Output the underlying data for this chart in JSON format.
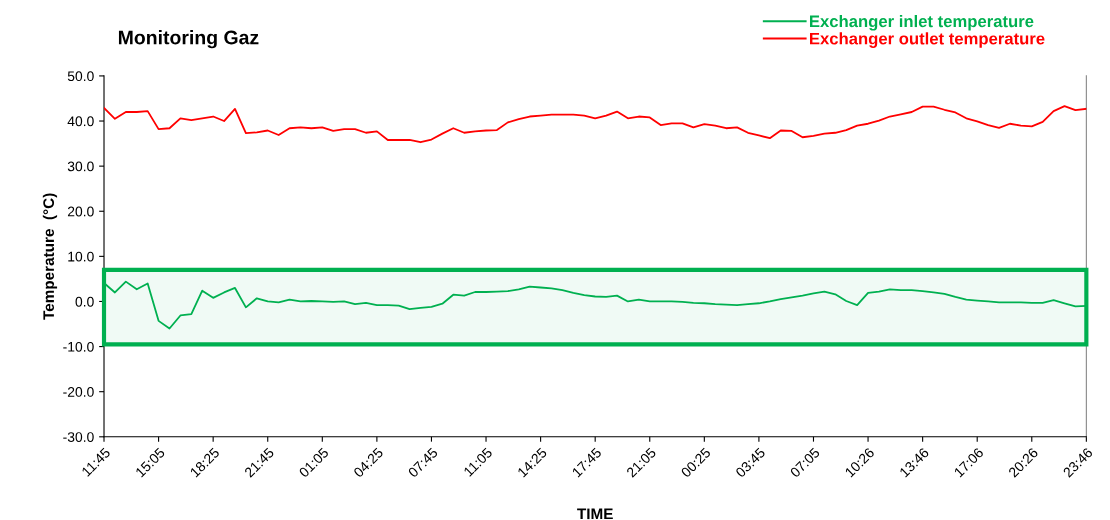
{
  "chart_data": {
    "type": "line",
    "title": "Monitoring Gaz",
    "xlabel": "TIME",
    "ylabel": "Temperature  (°C)",
    "categories": [
      "11:45",
      null,
      null,
      null,
      null,
      "15:05",
      null,
      null,
      null,
      null,
      "18:25",
      null,
      null,
      null,
      null,
      "21:45",
      null,
      null,
      null,
      null,
      "01:05",
      null,
      null,
      null,
      null,
      "04:25",
      null,
      null,
      null,
      null,
      "07:45",
      null,
      null,
      null,
      null,
      "11:05",
      null,
      null,
      null,
      null,
      "14:25",
      null,
      null,
      null,
      null,
      "17:45",
      null,
      null,
      null,
      null,
      "21:05",
      null,
      null,
      null,
      null,
      "00:25",
      null,
      null,
      null,
      null,
      "03:45",
      null,
      null,
      null,
      null,
      "07:05",
      null,
      null,
      null,
      null,
      "10:26",
      null,
      null,
      null,
      null,
      "13:46",
      null,
      null,
      null,
      null,
      "17:06",
      null,
      null,
      null,
      null,
      "20:26",
      null,
      null,
      null,
      null,
      "23:46"
    ],
    "ylim": [
      -30,
      50
    ],
    "yticks": [
      {
        "value": -30,
        "label": "-30.0"
      },
      {
        "value": -20,
        "label": "-20.0"
      },
      {
        "value": -10,
        "label": "-10.0"
      },
      {
        "value": 0,
        "label": "0.0"
      },
      {
        "value": 10,
        "label": "10.0"
      },
      {
        "value": 20,
        "label": "20.0"
      },
      {
        "value": 30,
        "label": "30.0"
      },
      {
        "value": 40,
        "label": "40.0"
      },
      {
        "value": 50,
        "label": "50.0"
      }
    ],
    "grid": false,
    "legend": "top right",
    "marker": "none",
    "line_style": "solid",
    "bands": [
      {
        "axis": "y",
        "from": -9.5,
        "to": 7.0,
        "color": "#00b050"
      }
    ],
    "series": [
      {
        "name": "Exchanger inlet temperature",
        "color": "#00b050",
        "values": [
          4.1,
          2.0,
          4.4,
          2.7,
          4.0,
          -4.3,
          -6.0,
          -3.1,
          -2.8,
          2.4,
          0.8,
          2.0,
          3.0,
          -1.3,
          0.7,
          0.0,
          -0.2,
          0.4,
          0.0,
          0.1,
          0.0,
          -0.1,
          0.0,
          -0.6,
          -0.3,
          -0.8,
          -0.8,
          -0.9,
          -1.7,
          -1.4,
          -1.2,
          -0.5,
          1.5,
          1.3,
          2.1,
          2.1,
          2.2,
          2.3,
          2.7,
          3.3,
          3.1,
          2.9,
          2.5,
          1.9,
          1.4,
          1.1,
          1.0,
          1.3,
          0.0,
          0.4,
          0.0,
          0.0,
          0.0,
          -0.1,
          -0.3,
          -0.4,
          -0.6,
          -0.7,
          -0.8,
          -0.6,
          -0.4,
          0.0,
          0.5,
          0.9,
          1.3,
          1.8,
          2.2,
          1.6,
          0.1,
          -0.8,
          1.9,
          2.2,
          2.7,
          2.5,
          2.5,
          2.3,
          2.0,
          1.7,
          1.0,
          0.4,
          0.2,
          0.0,
          -0.2,
          -0.2,
          -0.2,
          -0.3,
          -0.3,
          0.3,
          -0.4,
          -1.1,
          -1.0
        ]
      },
      {
        "name": "Exchanger outlet temperature",
        "color": "#ff0000",
        "values": [
          42.9,
          40.5,
          42.0,
          42.0,
          42.2,
          38.2,
          38.4,
          40.6,
          40.2,
          40.6,
          41.0,
          40.0,
          42.7,
          37.3,
          37.5,
          37.9,
          36.9,
          38.4,
          38.6,
          38.4,
          38.6,
          37.8,
          38.2,
          38.2,
          37.4,
          37.7,
          35.8,
          35.8,
          35.8,
          35.3,
          35.9,
          37.2,
          38.4,
          37.4,
          37.7,
          37.9,
          38.0,
          39.7,
          40.4,
          41.0,
          41.2,
          41.4,
          41.4,
          41.4,
          41.2,
          40.6,
          41.2,
          42.1,
          40.6,
          41.0,
          40.8,
          39.1,
          39.5,
          39.5,
          38.6,
          39.3,
          39.0,
          38.4,
          38.6,
          37.4,
          36.8,
          36.2,
          37.9,
          37.8,
          36.4,
          36.7,
          37.2,
          37.4,
          38.0,
          39.0,
          39.4,
          40.1,
          41.0,
          41.5,
          42.0,
          43.2,
          43.2,
          42.5,
          41.9,
          40.6,
          39.9,
          39.1,
          38.5,
          39.4,
          39.0,
          38.8,
          39.8,
          42.2,
          43.3,
          42.4,
          42.7
        ]
      }
    ]
  }
}
